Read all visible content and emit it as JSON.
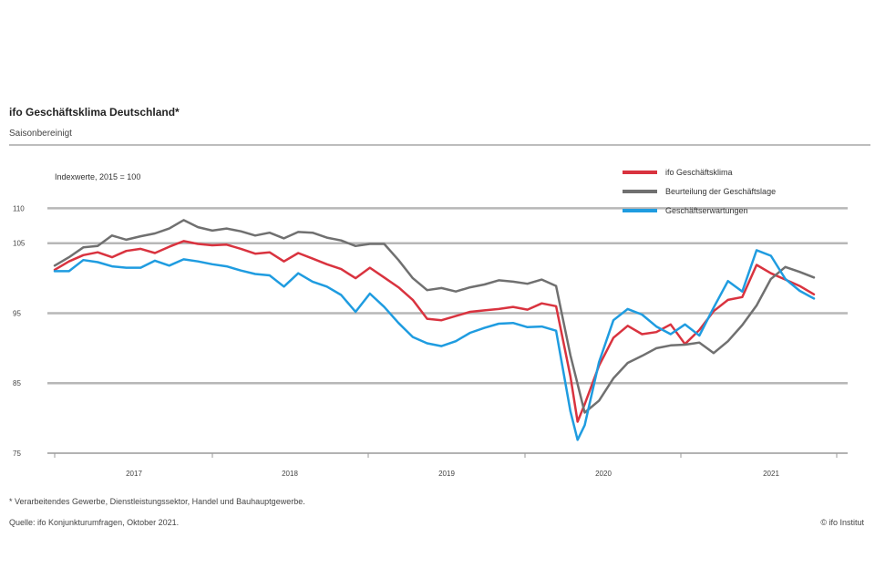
{
  "header": {
    "title": "ifo Geschäftsklima Deutschland*",
    "subtitle": "Saisonbereinigt"
  },
  "footer": {
    "footnote": "* Verarbeitendes Gewerbe, Dienstleistungssektor, Handel und Bauhauptgewerbe.",
    "source": "Quelle: ifo Konjunkturumfragen, Oktober 2021.",
    "credit": "© ifo Institut"
  },
  "chart_data": {
    "type": "line",
    "unit_label": "Indexwerte, 2015 = 100",
    "ylim": [
      75,
      112
    ],
    "yticks": [
      75,
      85,
      95,
      105,
      110
    ],
    "ytick_labels": [
      "75",
      "85",
      "95",
      "105",
      "110"
    ],
    "x_year_labels": [
      "2017",
      "2018",
      "2019",
      "2020",
      "2021"
    ],
    "x_range": [
      "2016-10",
      "2021-10"
    ],
    "grid": true,
    "legend_position": "top-right",
    "series": [
      {
        "name": "ifo Geschäftsklima",
        "color": "#d9333f",
        "values": [
          [
            0,
            101.2
          ],
          [
            2,
            102.4
          ],
          [
            4,
            103.3
          ],
          [
            6,
            103.7
          ],
          [
            8,
            103.0
          ],
          [
            10,
            103.9
          ],
          [
            12,
            104.2
          ],
          [
            14,
            103.6
          ],
          [
            16,
            104.5
          ],
          [
            18,
            105.3
          ],
          [
            20,
            104.9
          ],
          [
            22,
            104.7
          ],
          [
            24,
            104.8
          ],
          [
            26,
            104.2
          ],
          [
            28,
            103.5
          ],
          [
            30,
            103.7
          ],
          [
            32,
            102.4
          ],
          [
            34,
            103.6
          ],
          [
            36,
            102.8
          ],
          [
            38,
            102.0
          ],
          [
            40,
            101.3
          ],
          [
            42,
            100.0
          ],
          [
            44,
            101.5
          ],
          [
            46,
            100.1
          ],
          [
            48,
            98.7
          ],
          [
            50,
            96.9
          ],
          [
            52,
            94.2
          ],
          [
            54,
            94.0
          ],
          [
            56,
            94.6
          ],
          [
            58,
            95.2
          ],
          [
            60,
            95.4
          ],
          [
            62,
            95.6
          ],
          [
            64,
            95.9
          ],
          [
            66,
            95.5
          ],
          [
            68,
            96.4
          ],
          [
            70,
            96.0
          ],
          [
            72,
            86.0
          ],
          [
            73,
            79.5
          ],
          [
            74,
            82.0
          ],
          [
            76,
            87.5
          ],
          [
            78,
            91.5
          ],
          [
            80,
            93.2
          ],
          [
            82,
            92.0
          ],
          [
            84,
            92.3
          ],
          [
            86,
            93.4
          ],
          [
            88,
            90.6
          ],
          [
            90,
            92.6
          ],
          [
            92,
            95.3
          ],
          [
            94,
            96.9
          ],
          [
            96,
            97.3
          ],
          [
            98,
            101.9
          ],
          [
            100,
            100.7
          ],
          [
            102,
            99.8
          ],
          [
            104,
            98.9
          ],
          [
            106,
            97.7
          ]
        ]
      },
      {
        "name": "Beurteilung der Geschäftslage",
        "color": "#707070",
        "values": [
          [
            0,
            101.8
          ],
          [
            2,
            103.0
          ],
          [
            4,
            104.4
          ],
          [
            6,
            104.6
          ],
          [
            8,
            106.1
          ],
          [
            10,
            105.5
          ],
          [
            12,
            106.0
          ],
          [
            14,
            106.4
          ],
          [
            16,
            107.1
          ],
          [
            18,
            108.3
          ],
          [
            20,
            107.3
          ],
          [
            22,
            106.8
          ],
          [
            24,
            107.1
          ],
          [
            26,
            106.7
          ],
          [
            28,
            106.1
          ],
          [
            30,
            106.5
          ],
          [
            32,
            105.7
          ],
          [
            34,
            106.6
          ],
          [
            36,
            106.5
          ],
          [
            38,
            105.8
          ],
          [
            40,
            105.4
          ],
          [
            42,
            104.6
          ],
          [
            44,
            104.9
          ],
          [
            46,
            104.9
          ],
          [
            48,
            102.6
          ],
          [
            50,
            100.0
          ],
          [
            52,
            98.3
          ],
          [
            54,
            98.6
          ],
          [
            56,
            98.1
          ],
          [
            58,
            98.7
          ],
          [
            60,
            99.1
          ],
          [
            62,
            99.7
          ],
          [
            64,
            99.5
          ],
          [
            66,
            99.2
          ],
          [
            68,
            99.8
          ],
          [
            70,
            98.9
          ],
          [
            72,
            89.0
          ],
          [
            74,
            80.8
          ],
          [
            76,
            82.5
          ],
          [
            78,
            85.7
          ],
          [
            80,
            87.9
          ],
          [
            82,
            88.9
          ],
          [
            84,
            90.0
          ],
          [
            86,
            90.4
          ],
          [
            88,
            90.5
          ],
          [
            90,
            90.8
          ],
          [
            92,
            89.3
          ],
          [
            94,
            91.0
          ],
          [
            96,
            93.3
          ],
          [
            98,
            96.1
          ],
          [
            100,
            99.9
          ],
          [
            102,
            101.6
          ],
          [
            104,
            100.9
          ],
          [
            106,
            100.1
          ]
        ]
      },
      {
        "name": "Geschäftserwartungen",
        "color": "#1f9ce0",
        "values": [
          [
            0,
            101.0
          ],
          [
            2,
            101.0
          ],
          [
            4,
            102.6
          ],
          [
            6,
            102.3
          ],
          [
            8,
            101.7
          ],
          [
            10,
            101.5
          ],
          [
            12,
            101.5
          ],
          [
            14,
            102.5
          ],
          [
            16,
            101.8
          ],
          [
            18,
            102.7
          ],
          [
            20,
            102.4
          ],
          [
            22,
            102.0
          ],
          [
            24,
            101.7
          ],
          [
            26,
            101.1
          ],
          [
            28,
            100.6
          ],
          [
            30,
            100.4
          ],
          [
            32,
            98.8
          ],
          [
            34,
            100.7
          ],
          [
            36,
            99.5
          ],
          [
            38,
            98.8
          ],
          [
            40,
            97.6
          ],
          [
            42,
            95.2
          ],
          [
            44,
            97.8
          ],
          [
            46,
            95.9
          ],
          [
            48,
            93.6
          ],
          [
            50,
            91.6
          ],
          [
            52,
            90.7
          ],
          [
            54,
            90.3
          ],
          [
            56,
            91.0
          ],
          [
            58,
            92.2
          ],
          [
            60,
            92.9
          ],
          [
            62,
            93.5
          ],
          [
            64,
            93.6
          ],
          [
            66,
            93.0
          ],
          [
            68,
            93.1
          ],
          [
            70,
            92.5
          ],
          [
            72,
            81.0
          ],
          [
            73,
            76.9
          ],
          [
            74,
            79.0
          ],
          [
            76,
            88.0
          ],
          [
            78,
            94.0
          ],
          [
            80,
            95.6
          ],
          [
            82,
            94.8
          ],
          [
            84,
            93.1
          ],
          [
            86,
            92.0
          ],
          [
            88,
            93.4
          ],
          [
            90,
            91.8
          ],
          [
            92,
            95.8
          ],
          [
            94,
            99.6
          ],
          [
            96,
            98.1
          ],
          [
            98,
            104.0
          ],
          [
            100,
            103.2
          ],
          [
            102,
            99.9
          ],
          [
            104,
            98.2
          ],
          [
            106,
            97.1
          ]
        ]
      }
    ]
  }
}
